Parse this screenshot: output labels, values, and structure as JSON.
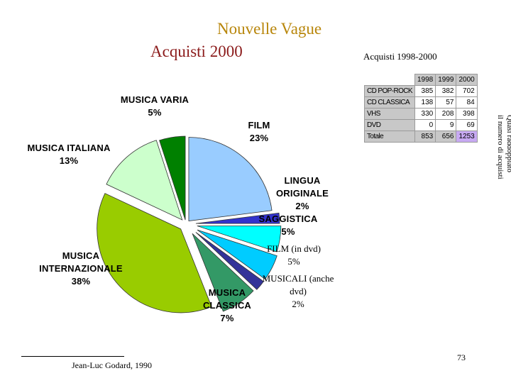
{
  "chart_data": {
    "type": "pie",
    "title": "Nouvelle Vague",
    "subtitle": "Acquisti 2000",
    "slices": [
      {
        "name": "FILM",
        "value": 23,
        "label": "23%",
        "color": "#99ccff"
      },
      {
        "name": "LINGUA ORIGINALE",
        "value": 2,
        "label": "2%",
        "color": "#3333cc"
      },
      {
        "name": "SAGGISTICA",
        "value": 5,
        "label": "5%",
        "color": "#00ffff"
      },
      {
        "name": "FILM (in dvd)",
        "value": 5,
        "label": "5%",
        "color": "#00ccff"
      },
      {
        "name": "MUSICALI (anche dvd)",
        "value": 2,
        "label": "2%",
        "color": "#333399"
      },
      {
        "name": "MUSICA CLASSICA",
        "value": 7,
        "label": "7%",
        "color": "#339966"
      },
      {
        "name": "MUSICA INTERNAZIONALE",
        "value": 38,
        "label": "38%",
        "color": "#99cc00"
      },
      {
        "name": "MUSICA ITALIANA",
        "value": 13,
        "label": "13%",
        "color": "#ccffcc"
      },
      {
        "name": "MUSICA VARIA",
        "value": 5,
        "label": "5%",
        "color": "#008000"
      }
    ]
  },
  "table": {
    "title": "Acquisti 1998-2000",
    "columns": [
      "1998",
      "1999",
      "2000"
    ],
    "rows": [
      {
        "label": "CD POP-ROCK",
        "values": [
          "385",
          "382",
          "702"
        ]
      },
      {
        "label": "CD CLASSICA",
        "values": [
          "138",
          "57",
          "84"
        ]
      },
      {
        "label": "VHS",
        "values": [
          "330",
          "208",
          "398"
        ]
      },
      {
        "label": "DVD",
        "values": [
          "0",
          "9",
          "69"
        ]
      }
    ],
    "total": {
      "label": "Totale",
      "values": [
        "853",
        "656",
        "1253"
      ]
    },
    "highlight_color": "#c7a9f2"
  },
  "side_note": [
    "Quasi raddoppiato",
    "il numero di acquisti"
  ],
  "labels": {
    "musica_varia": [
      "MUSICA VARIA",
      "5%"
    ],
    "film": [
      "FILM",
      "23%"
    ],
    "musica_italiana": [
      "MUSICA ITALIANA",
      "13%"
    ],
    "lingua_originale": [
      "LINGUA",
      "ORIGINALE",
      "2%"
    ],
    "saggistica": [
      "SAGGISTICA",
      "5%"
    ],
    "film_dvd": [
      "FILM (in dvd)",
      "5%"
    ],
    "musica_internazionale": [
      "MUSICA",
      "INTERNAZIONALE",
      "38%"
    ],
    "musicali": [
      "MUSICALI (anche",
      "dvd)",
      "2%"
    ],
    "musica_classica": [
      "MUSICA",
      "CLASSICA",
      "7%"
    ]
  },
  "footer": {
    "credit": "Jean-Luc Godard, 1990",
    "page": "73"
  }
}
